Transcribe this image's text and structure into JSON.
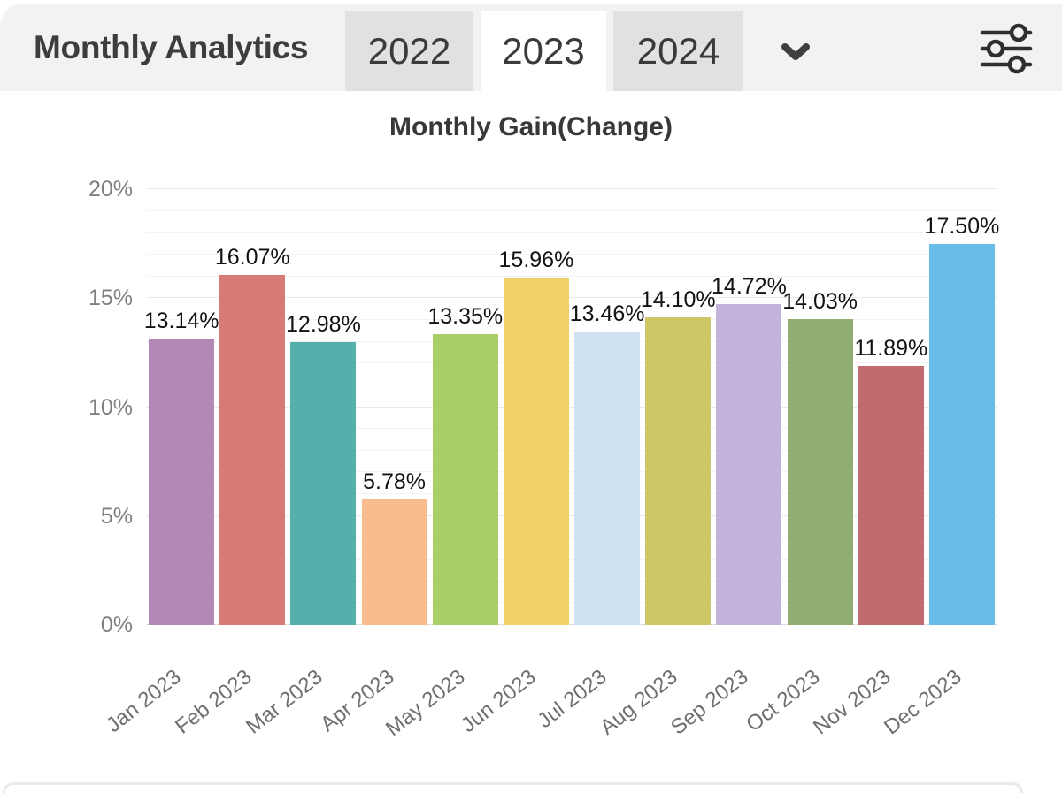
{
  "header": {
    "title": "Monthly Analytics",
    "tabs": [
      {
        "label": "2022",
        "active": false
      },
      {
        "label": "2023",
        "active": true
      },
      {
        "label": "2024",
        "active": false
      }
    ],
    "icons": {
      "more_years": "chevron-down-icon",
      "settings": "sliders-icon"
    },
    "colors": {
      "header_bg": "#f2f2f2",
      "inactive_tab_bg": "#e1e1e1",
      "active_tab_bg": "#ffffff",
      "text": "#3a3a3a"
    }
  },
  "chart_data": {
    "type": "bar",
    "title": "Monthly Gain(Change)",
    "categories": [
      "Jan 2023",
      "Feb 2023",
      "Mar 2023",
      "Apr 2023",
      "May 2023",
      "Jun 2023",
      "Jul 2023",
      "Aug 2023",
      "Sep 2023",
      "Oct 2023",
      "Nov 2023",
      "Dec 2023"
    ],
    "values": [
      13.14,
      16.07,
      12.98,
      5.78,
      13.35,
      15.96,
      13.46,
      14.1,
      14.72,
      14.03,
      11.89,
      17.5
    ],
    "value_labels": [
      "13.14%",
      "16.07%",
      "12.98%",
      "5.78%",
      "13.35%",
      "15.96%",
      "13.46%",
      "14.10%",
      "14.72%",
      "14.03%",
      "11.89%",
      "17.50%"
    ],
    "bar_colors": [
      "#b288b4",
      "#da7a78",
      "#54b0ab",
      "#f9bc8f",
      "#a8cf68",
      "#f0d168",
      "#cfe2f4",
      "#cdc766",
      "#c3b3db",
      "#92ad74",
      "#c16b6e",
      "#69bbe8"
    ],
    "xlabel": "",
    "ylabel": "",
    "ylim": [
      0,
      20
    ],
    "ytick_interval": 5,
    "minor_grid_interval": 1,
    "yticks": [
      "0%",
      "5%",
      "10%",
      "15%",
      "20%"
    ],
    "grid": true,
    "legend": "none",
    "xlabel_rotation_deg": -38
  }
}
